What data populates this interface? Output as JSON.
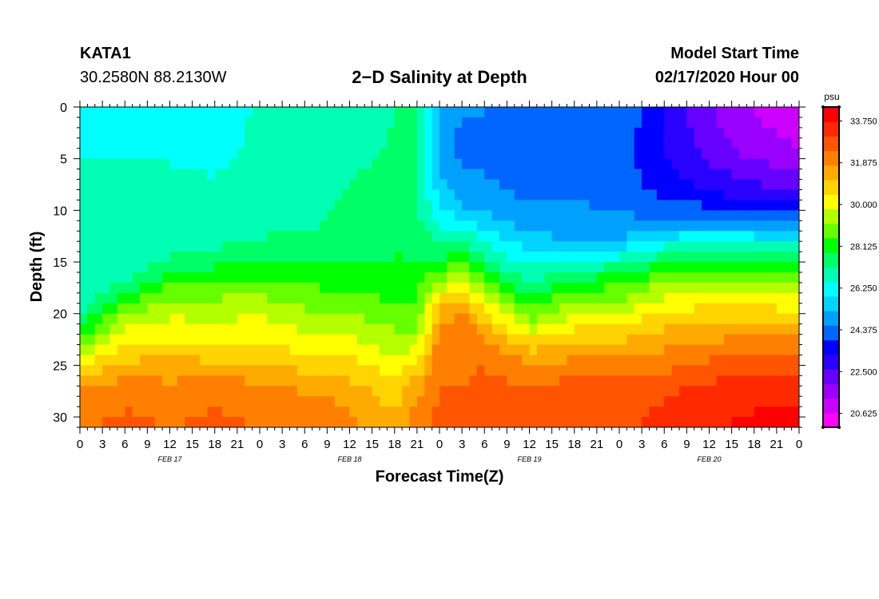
{
  "header": {
    "station_id": "KATA1",
    "coords": "30.2580N 88.2130W",
    "title": "2−D Salinity at Depth",
    "model_start_label": "Model Start Time",
    "model_start_value": "02/17/2020 Hour 00"
  },
  "chart_data": {
    "type": "heatmap",
    "title": "2−D Salinity at Depth",
    "xlabel": "Forecast Time(Z)",
    "ylabel": "Depth (ft)",
    "x_unit": "forecast hours from 02/17/2020 00Z",
    "xlim": [
      0,
      96
    ],
    "ylim": [
      0,
      31
    ],
    "y_ticks": [
      0,
      5,
      10,
      15,
      20,
      25,
      30
    ],
    "x_tick_labels": [
      "0",
      "3",
      "6",
      "9",
      "12",
      "15",
      "18",
      "21",
      "0",
      "3",
      "6",
      "9",
      "12",
      "15",
      "18",
      "21",
      "0",
      "3",
      "6",
      "9",
      "12",
      "15",
      "18",
      "21",
      "0",
      "3",
      "6",
      "9",
      "12",
      "15",
      "18",
      "21",
      "0"
    ],
    "day_labels": [
      {
        "label": "FEB 17",
        "hour": 12
      },
      {
        "label": "FEB 18",
        "hour": 36
      },
      {
        "label": "FEB 19",
        "hour": 60
      },
      {
        "label": "FEB 20",
        "hour": 84
      }
    ],
    "colorbar": {
      "unit": "psu",
      "min": 20.0,
      "max": 34.375,
      "tick_values": [
        "33.750",
        "31.875",
        "30.000",
        "28.125",
        "26.250",
        "24.375",
        "22.500",
        "20.625"
      ],
      "colors": [
        "#ff00ff",
        "#cc00ff",
        "#9900ff",
        "#6600ff",
        "#2a00ff",
        "#0000ff",
        "#0066ff",
        "#00a0ff",
        "#00d4ff",
        "#00ffff",
        "#00ffb4",
        "#00ff66",
        "#00ff00",
        "#66ff00",
        "#b4ff00",
        "#ffff00",
        "#ffd400",
        "#ffaa00",
        "#ff8000",
        "#ff5500",
        "#ff2a00",
        "#ff0000"
      ]
    },
    "depth_levels_ft": [
      0,
      4,
      8,
      11,
      13,
      15,
      17,
      19,
      21,
      23,
      25,
      27,
      29,
      31
    ],
    "time_hours": [
      0,
      6,
      12,
      18,
      24,
      30,
      36,
      42,
      45,
      48,
      51,
      54,
      60,
      66,
      72,
      78,
      84,
      90,
      96
    ],
    "salinity_columns": [
      [
        26.4,
        26.5,
        26.6,
        26.6,
        26.6,
        26.6,
        26.6,
        26.8,
        27.6,
        29.0,
        30.5,
        31.6,
        32.2,
        32.4
      ],
      [
        26.5,
        26.5,
        26.6,
        26.6,
        26.6,
        26.7,
        27.0,
        28.5,
        29.6,
        30.5,
        31.3,
        32.0,
        32.4,
        32.5
      ],
      [
        26.5,
        26.5,
        26.6,
        26.7,
        26.8,
        27.3,
        28.4,
        29.3,
        30.0,
        30.6,
        31.3,
        31.9,
        32.3,
        32.4
      ],
      [
        26.3,
        26.4,
        26.6,
        26.8,
        27.0,
        27.6,
        28.6,
        29.3,
        29.9,
        30.5,
        31.3,
        32.0,
        32.4,
        32.5
      ],
      [
        26.6,
        26.6,
        26.7,
        27.1,
        27.2,
        27.7,
        28.7,
        29.4,
        30.0,
        30.5,
        31.2,
        31.9,
        32.3,
        32.4
      ],
      [
        26.7,
        26.7,
        26.8,
        27.0,
        27.3,
        27.7,
        28.4,
        29.0,
        29.6,
        30.2,
        30.9,
        31.6,
        32.0,
        32.2
      ],
      [
        27.0,
        27.1,
        27.2,
        27.4,
        27.5,
        27.8,
        28.2,
        28.8,
        29.4,
        30.0,
        30.7,
        31.3,
        31.8,
        31.9
      ],
      [
        27.2,
        27.2,
        27.3,
        27.5,
        27.7,
        27.9,
        28.2,
        28.5,
        29.0,
        29.5,
        30.2,
        30.6,
        31.0,
        31.2
      ],
      [
        27.3,
        27.3,
        27.3,
        27.4,
        27.6,
        27.9,
        28.2,
        28.5,
        28.9,
        29.6,
        30.6,
        31.5,
        32.0,
        32.2
      ],
      [
        25.0,
        25.0,
        25.5,
        26.3,
        27.0,
        27.8,
        29.3,
        30.8,
        31.7,
        32.1,
        32.3,
        32.4,
        32.5,
        32.5
      ],
      [
        24.6,
        24.4,
        24.7,
        25.8,
        27.3,
        28.6,
        30.0,
        31.4,
        32.2,
        32.3,
        32.4,
        32.4,
        32.5,
        32.5
      ],
      [
        24.6,
        24.4,
        24.7,
        25.4,
        26.4,
        27.3,
        28.6,
        30.0,
        31.2,
        32.0,
        32.4,
        32.5,
        32.6,
        32.6
      ],
      [
        24.4,
        24.2,
        24.4,
        24.9,
        25.5,
        26.3,
        27.1,
        28.2,
        29.3,
        30.8,
        31.9,
        32.5,
        32.7,
        32.7
      ],
      [
        24.5,
        24.3,
        24.4,
        24.8,
        25.2,
        26.6,
        28.1,
        29.3,
        30.3,
        31.2,
        32.0,
        32.6,
        32.8,
        32.8
      ],
      [
        24.5,
        24.3,
        24.3,
        24.7,
        25.2,
        27.0,
        28.3,
        29.3,
        30.4,
        31.3,
        32.0,
        32.7,
        32.9,
        33.0
      ],
      [
        23.3,
        23.2,
        23.7,
        24.6,
        26.2,
        27.7,
        29.1,
        30.1,
        31.0,
        31.6,
        32.2,
        32.9,
        33.1,
        33.2
      ],
      [
        22.0,
        22.3,
        23.2,
        24.5,
        26.6,
        28.1,
        29.3,
        30.3,
        31.2,
        31.9,
        32.6,
        33.2,
        33.6,
        33.7
      ],
      [
        21.2,
        21.6,
        22.8,
        24.3,
        26.4,
        28.0,
        29.3,
        30.3,
        31.3,
        32.0,
        32.8,
        33.3,
        33.7,
        33.8
      ],
      [
        20.8,
        21.3,
        22.6,
        24.2,
        26.3,
        27.9,
        29.0,
        30.1,
        31.2,
        32.1,
        32.9,
        33.4,
        33.8,
        33.9
      ]
    ]
  }
}
